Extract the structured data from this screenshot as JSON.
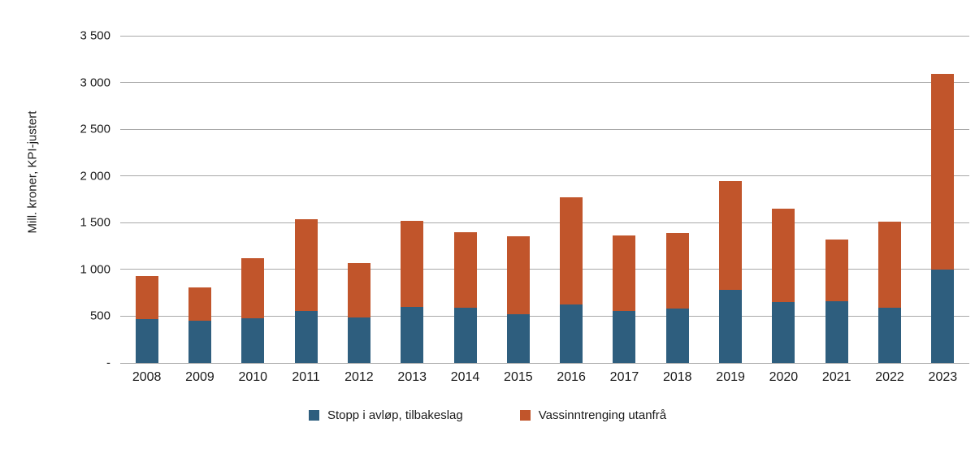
{
  "chart_data": {
    "type": "bar",
    "stacked": true,
    "title": "",
    "xlabel": "",
    "ylabel": "Mill. kroner, KPI-justert",
    "ylim": [
      0,
      3500
    ],
    "ytick_interval": 500,
    "ytick_labels": [
      "-",
      "500",
      "1 000",
      "1 500",
      "2 000",
      "2 500",
      "3 000",
      "3 500"
    ],
    "grid": true,
    "legend_position": "bottom",
    "categories": [
      "2008",
      "2009",
      "2010",
      "2011",
      "2012",
      "2013",
      "2014",
      "2015",
      "2016",
      "2017",
      "2018",
      "2019",
      "2020",
      "2021",
      "2022",
      "2023"
    ],
    "series": [
      {
        "name": "Stopp i avløp, tilbakeslag",
        "color": "#2E5E7E",
        "values": [
          470,
          450,
          480,
          555,
          490,
          600,
          590,
          520,
          625,
          555,
          580,
          780,
          650,
          660,
          590,
          1000
        ]
      },
      {
        "name": "Vassinntrenging utanfrå",
        "color": "#C1552B",
        "values": [
          460,
          360,
          640,
          985,
          580,
          920,
          810,
          835,
          1145,
          810,
          810,
          1170,
          1000,
          660,
          920,
          2090
        ]
      }
    ],
    "totals": [
      930,
      810,
      1120,
      1540,
      1070,
      1520,
      1400,
      1355,
      1770,
      1365,
      1390,
      1950,
      1650,
      1320,
      1510,
      3090
    ]
  }
}
